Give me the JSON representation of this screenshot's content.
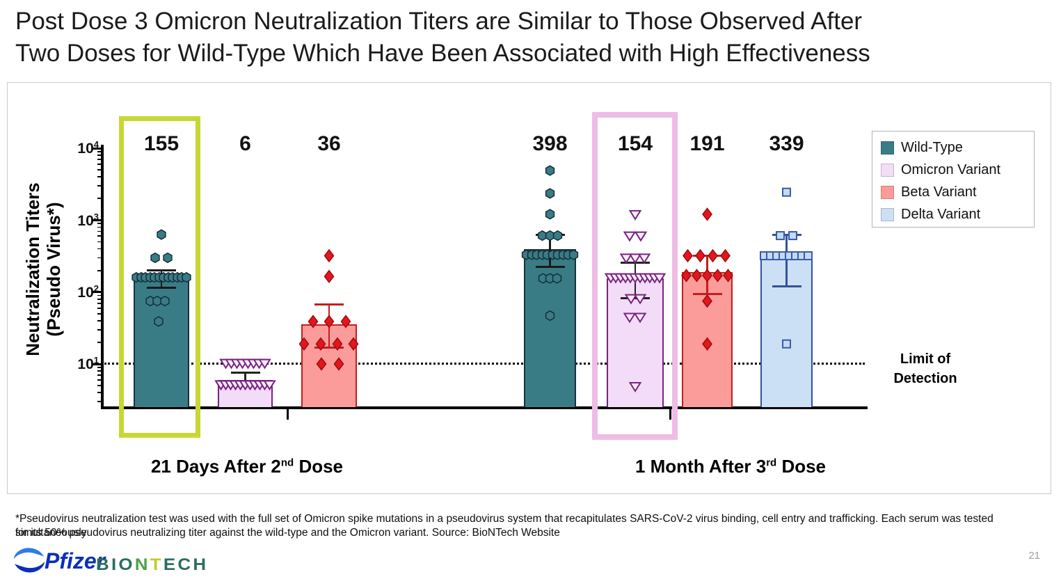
{
  "header": {
    "title_line1": "Post Dose 3 Omicron Neutralization Titers are Similar to Those Observed After",
    "title_line2": "Two Doses for Wild-Type Which Have Been Associated with High Effectiveness"
  },
  "chart_data": {
    "type": "bar",
    "y_scale": "log10",
    "ylim": [
      2.5,
      10000
    ],
    "grid": false,
    "legend_position": "top-right",
    "ylabel_line1": "Neutralization Titers",
    "ylabel_line2": "(Pseudo Virus*)",
    "y_ticks": [
      {
        "base": "10",
        "exp": "4",
        "value": 10000
      },
      {
        "base": "10",
        "exp": "3",
        "value": 1000
      },
      {
        "base": "10",
        "exp": "2",
        "value": 100
      },
      {
        "base": "10",
        "exp": "1",
        "value": 10
      }
    ],
    "limit_of_detection": {
      "value": 10,
      "label_line1": "Limit of",
      "label_line2": "Detection"
    },
    "groups": [
      {
        "label_pre": "21 Days After 2",
        "label_sup": "nd",
        "label_post": " Dose"
      },
      {
        "label_pre": "1 Month After 3",
        "label_sup": "rd",
        "label_post": " Dose"
      }
    ],
    "legend": [
      {
        "series": "wild_type",
        "label": "Wild-Type"
      },
      {
        "series": "omicron",
        "label": "Omicron Variant"
      },
      {
        "series": "beta",
        "label": "Beta Variant"
      },
      {
        "series": "delta",
        "label": "Delta Variant"
      }
    ],
    "series_styles": {
      "wild_type": {
        "fill": "#3A7C85",
        "edge": "#16323E",
        "marker": "hexagon",
        "marker_fill": "#3A7C85",
        "marker_edge": "#132F3A",
        "err_color": "#1a1a1a"
      },
      "omicron": {
        "fill": "#F2DCF8",
        "edge": "#7A2182",
        "marker": "triangle",
        "marker_fill": "#FAF0FC",
        "marker_edge": "#7A2182",
        "err_color": "#222222"
      },
      "beta": {
        "fill": "#FB9C9A",
        "edge": "#C41E1D",
        "marker": "diamond",
        "marker_fill": "#E3161E",
        "marker_edge": "#9E0B0F",
        "err_color": "#C41E1D"
      },
      "delta": {
        "fill": "#CCE0F5",
        "edge": "#32519E",
        "marker": "square",
        "marker_fill": "#C3DAF3",
        "marker_edge": "#3A5BA9",
        "err_color": "#32519E"
      }
    },
    "highlight_colors": {
      "green": "#C7D733",
      "pink": "#EFBCE5"
    },
    "bars": [
      {
        "series": "wild_type",
        "group": 0,
        "value": 155,
        "err_upper": 200,
        "err_lower": 115,
        "highlight": "green",
        "points": [
          [
            0,
            630
          ],
          [
            -9,
            300
          ],
          [
            9,
            300
          ],
          [
            -36,
            160
          ],
          [
            -29,
            160
          ],
          [
            -23,
            160
          ],
          [
            -16,
            160
          ],
          [
            -10,
            160
          ],
          [
            -3,
            160
          ],
          [
            3,
            160
          ],
          [
            10,
            160
          ],
          [
            16,
            160
          ],
          [
            23,
            160
          ],
          [
            29,
            160
          ],
          [
            36,
            160
          ],
          [
            -16,
            75
          ],
          [
            -6,
            75
          ],
          [
            5,
            75
          ],
          [
            -4,
            39
          ]
        ]
      },
      {
        "series": "omicron",
        "group": 0,
        "value": 6,
        "err_upper": 7.5,
        "err_lower": null,
        "highlight": null,
        "points": [
          [
            -28,
            10.3
          ],
          [
            -20,
            10.3
          ],
          [
            -12,
            10.3
          ],
          [
            -4,
            10.3
          ],
          [
            4,
            10.3
          ],
          [
            12,
            10.3
          ],
          [
            20,
            10.3
          ],
          [
            28,
            10.3
          ],
          [
            -35,
            5.2
          ],
          [
            -28,
            5.2
          ],
          [
            -21,
            5.2
          ],
          [
            -14,
            5.2
          ],
          [
            -7,
            5.2
          ],
          [
            0,
            5.2
          ],
          [
            7,
            5.2
          ],
          [
            14,
            5.2
          ],
          [
            21,
            5.2
          ],
          [
            28,
            5.2
          ],
          [
            35,
            5.2
          ]
        ]
      },
      {
        "series": "beta",
        "group": 0,
        "value": 36,
        "err_upper": 67,
        "err_lower": 17,
        "highlight": null,
        "points": [
          [
            0,
            320
          ],
          [
            0,
            165
          ],
          [
            -23,
            39
          ],
          [
            0,
            39
          ],
          [
            24,
            39
          ],
          [
            -36,
            19
          ],
          [
            -12,
            19
          ],
          [
            12,
            19
          ],
          [
            35,
            19
          ],
          [
            -11,
            10
          ],
          [
            14,
            10
          ]
        ]
      },
      {
        "series": "wild_type",
        "group": 1,
        "value": 398,
        "err_upper": 620,
        "err_lower": 224,
        "highlight": null,
        "points": [
          [
            0,
            4900
          ],
          [
            0,
            2360
          ],
          [
            0,
            1210
          ],
          [
            -11,
            610
          ],
          [
            0,
            610
          ],
          [
            11,
            610
          ],
          [
            -34,
            330
          ],
          [
            -26,
            330
          ],
          [
            -19,
            330
          ],
          [
            -11,
            330
          ],
          [
            -4,
            330
          ],
          [
            4,
            330
          ],
          [
            11,
            330
          ],
          [
            19,
            330
          ],
          [
            26,
            330
          ],
          [
            34,
            330
          ],
          [
            -10,
            155
          ],
          [
            0,
            155
          ],
          [
            10,
            155
          ],
          [
            0,
            47
          ]
        ]
      },
      {
        "series": "omicron",
        "group": 1,
        "value": 154,
        "err_upper": 257,
        "err_lower": 82,
        "highlight": "pink",
        "points": [
          [
            0,
            1210
          ],
          [
            -8,
            610
          ],
          [
            8,
            610
          ],
          [
            -13,
            300
          ],
          [
            0,
            300
          ],
          [
            13,
            300
          ],
          [
            -35,
            160
          ],
          [
            -28,
            160
          ],
          [
            -21,
            160
          ],
          [
            -14,
            160
          ],
          [
            -7,
            160
          ],
          [
            0,
            160
          ],
          [
            7,
            160
          ],
          [
            14,
            160
          ],
          [
            21,
            160
          ],
          [
            28,
            160
          ],
          [
            35,
            160
          ],
          [
            -6,
            82
          ],
          [
            7,
            82
          ],
          [
            -8,
            45
          ],
          [
            7,
            45
          ],
          [
            0,
            4.9
          ]
        ]
      },
      {
        "series": "beta",
        "group": 1,
        "value": 191,
        "err_upper": 320,
        "err_lower": 94,
        "highlight": null,
        "points": [
          [
            0,
            1210
          ],
          [
            -28,
            320
          ],
          [
            -10,
            320
          ],
          [
            8,
            320
          ],
          [
            26,
            320
          ],
          [
            -30,
            170
          ],
          [
            -15,
            170
          ],
          [
            0,
            170
          ],
          [
            15,
            170
          ],
          [
            30,
            170
          ],
          [
            0,
            75
          ],
          [
            0,
            19
          ]
        ]
      },
      {
        "series": "delta",
        "group": 1,
        "value": 339,
        "err_upper": 620,
        "err_lower": 120,
        "highlight": null,
        "points": [
          [
            0,
            2450
          ],
          [
            -9,
            610
          ],
          [
            9,
            610
          ],
          [
            -32,
            320
          ],
          [
            -23,
            320
          ],
          [
            -14,
            320
          ],
          [
            -5,
            320
          ],
          [
            4,
            320
          ],
          [
            13,
            320
          ],
          [
            22,
            320
          ],
          [
            31,
            320
          ],
          [
            0,
            19
          ]
        ]
      }
    ]
  },
  "footnote": {
    "line1": "*Pseudovirus neutralization test was used with the full set of Omicron spike mutations in a pseudovirus system that recapitulates SARS-CoV-2 virus binding, cell entry and trafficking. Each serum was tested simultaneously",
    "line2": "for its 50% pseudovirus neutralizing titer against the wild-type and the Omicron variant. Source: BioNTech Website"
  },
  "footer": {
    "pfizer_text": "Pfizer",
    "biontech_segments": [
      {
        "text": "BIO",
        "color": "#2C6E60"
      },
      {
        "text": "N",
        "color": "#4DA14C"
      },
      {
        "text": "T",
        "color": "#BFCC33"
      },
      {
        "text": "ECH",
        "color": "#2C6E60"
      }
    ],
    "page_number": "21"
  }
}
